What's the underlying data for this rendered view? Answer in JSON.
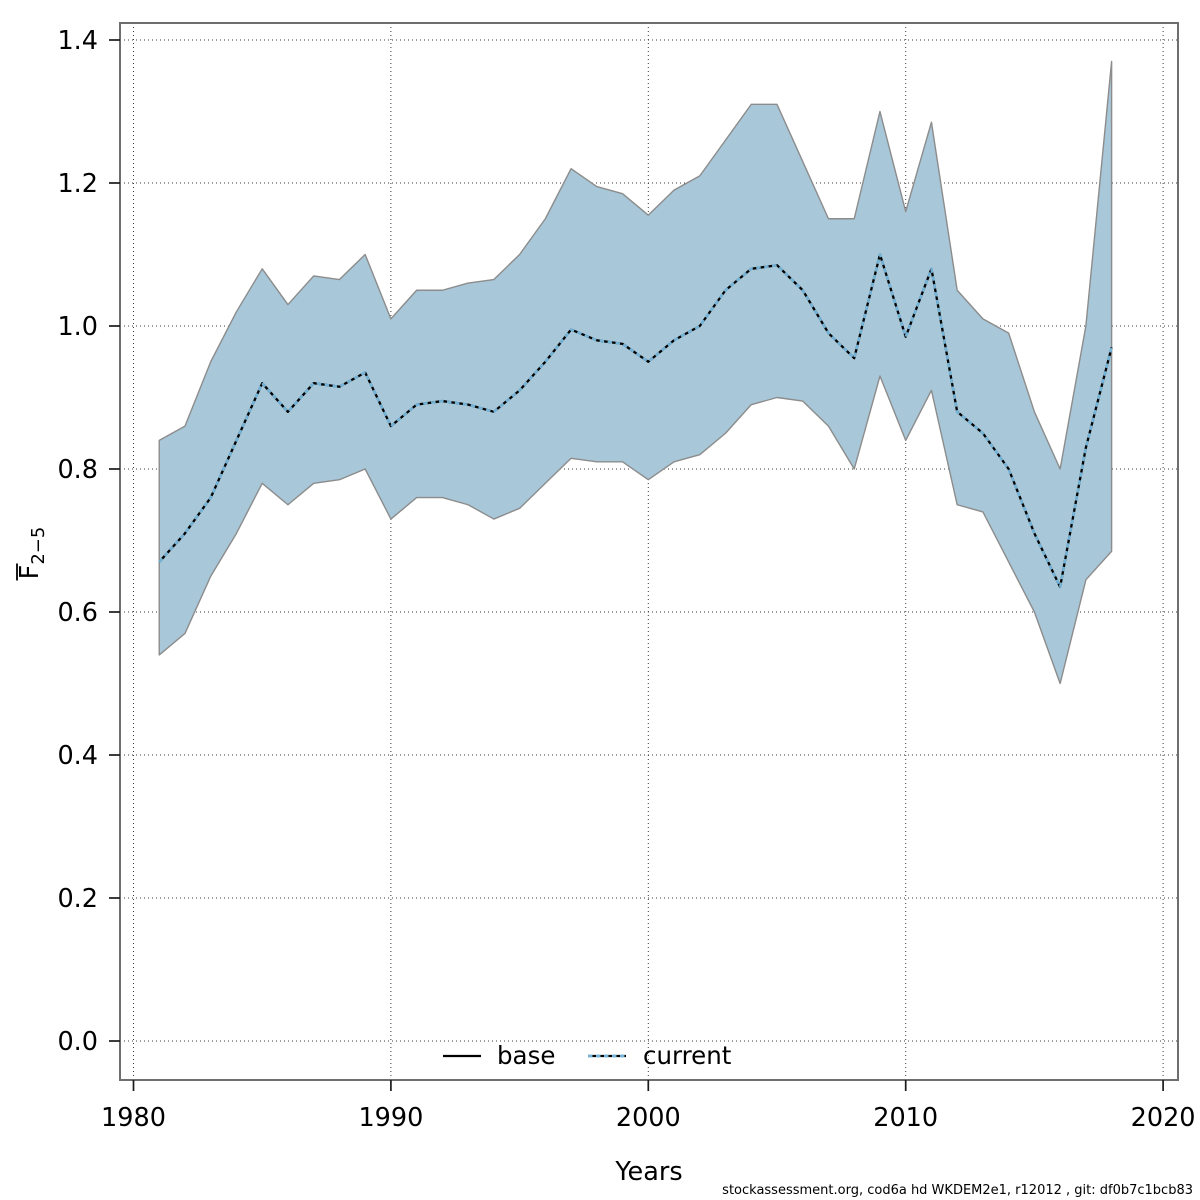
{
  "chart_data": {
    "type": "line",
    "title": "",
    "xlabel": "Years",
    "ylabel_base": "F",
    "ylabel_sub": "2−5",
    "ylabel_has_overbar": true,
    "x_ticks": [
      1980,
      1990,
      2000,
      2010,
      2020
    ],
    "y_ticks": [
      0.0,
      0.2,
      0.4,
      0.6,
      0.8,
      1.0,
      1.2,
      1.4
    ],
    "xlim": [
      1979.5,
      2020.6
    ],
    "ylim": [
      -0.055,
      1.424
    ],
    "grid": "dotted",
    "legend_position": "bottom-center",
    "years": [
      1981,
      1982,
      1983,
      1984,
      1985,
      1986,
      1987,
      1988,
      1989,
      1990,
      1991,
      1992,
      1993,
      1994,
      1995,
      1996,
      1997,
      1998,
      1999,
      2000,
      2001,
      2002,
      2003,
      2004,
      2005,
      2006,
      2007,
      2008,
      2009,
      2010,
      2011,
      2012,
      2013,
      2014,
      2015,
      2016,
      2017,
      2018
    ],
    "series": [
      {
        "name": "base",
        "style": "solid",
        "color": "#000000",
        "values": [
          0.67,
          0.71,
          0.76,
          0.84,
          0.92,
          0.88,
          0.92,
          0.915,
          0.935,
          0.86,
          0.89,
          0.895,
          0.89,
          0.88,
          0.91,
          0.95,
          0.995,
          0.98,
          0.975,
          0.95,
          0.98,
          1.0,
          1.05,
          1.08,
          1.085,
          1.05,
          0.99,
          0.955,
          1.1,
          0.985,
          1.08,
          0.88,
          0.85,
          0.8,
          0.71,
          0.635,
          0.83,
          0.97
        ]
      },
      {
        "name": "current",
        "style": "dotted",
        "color": "#74b4d8",
        "values": [
          0.67,
          0.71,
          0.76,
          0.84,
          0.92,
          0.88,
          0.92,
          0.915,
          0.935,
          0.86,
          0.89,
          0.895,
          0.89,
          0.88,
          0.91,
          0.95,
          0.995,
          0.98,
          0.975,
          0.95,
          0.98,
          1.0,
          1.05,
          1.08,
          1.085,
          1.05,
          0.99,
          0.955,
          1.1,
          0.985,
          1.08,
          0.88,
          0.85,
          0.8,
          0.71,
          0.635,
          0.83,
          0.97
        ]
      }
    ],
    "band": {
      "series": "current",
      "fill": "#a8c7d8",
      "edge": "#8c8c8c",
      "lower": [
        0.54,
        0.57,
        0.65,
        0.71,
        0.78,
        0.75,
        0.78,
        0.785,
        0.8,
        0.73,
        0.76,
        0.76,
        0.75,
        0.73,
        0.745,
        0.78,
        0.815,
        0.81,
        0.81,
        0.785,
        0.81,
        0.82,
        0.85,
        0.89,
        0.9,
        0.895,
        0.86,
        0.8,
        0.93,
        0.84,
        0.91,
        0.75,
        0.74,
        0.67,
        0.6,
        0.5,
        0.645,
        0.685
      ],
      "upper": [
        0.84,
        0.86,
        0.95,
        1.02,
        1.08,
        1.03,
        1.07,
        1.065,
        1.1,
        1.01,
        1.05,
        1.05,
        1.06,
        1.065,
        1.1,
        1.15,
        1.22,
        1.195,
        1.185,
        1.155,
        1.19,
        1.21,
        1.26,
        1.31,
        1.31,
        1.23,
        1.15,
        1.15,
        1.3,
        1.16,
        1.285,
        1.05,
        1.01,
        0.99,
        0.88,
        0.8,
        1.0,
        1.37
      ]
    },
    "legend": [
      {
        "label": "base"
      },
      {
        "label": "current"
      }
    ]
  },
  "footer": {
    "attribution": "stockassessment.org, cod6a hd WKDEM2e1, r12012 , git: df0b7c1bcb83"
  }
}
